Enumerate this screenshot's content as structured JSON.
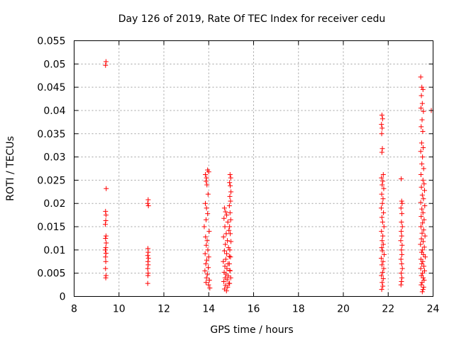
{
  "chart_data": {
    "type": "scatter",
    "title": "Day 126 of 2019, Rate Of TEC Index for receiver cedu",
    "xlabel": "GPS time / hours",
    "ylabel": "ROTI / TECUs",
    "xlim": [
      8,
      24
    ],
    "ylim": [
      0,
      0.055
    ],
    "x_ticks": [
      8,
      10,
      12,
      14,
      16,
      18,
      20,
      22,
      24
    ],
    "x_tick_labels": [
      "8",
      "10",
      "12",
      "14",
      "16",
      "18",
      "20",
      "22",
      "24"
    ],
    "y_ticks": [
      0,
      0.005,
      0.01,
      0.015,
      0.02,
      0.025,
      0.03,
      0.035,
      0.04,
      0.045,
      0.05,
      0.055
    ],
    "y_tick_labels": [
      "0",
      "0.005",
      "0.01",
      "0.015",
      "0.02",
      "0.025",
      "0.03",
      "0.035",
      "0.04",
      "0.045",
      "0.05",
      "0.055"
    ],
    "grid": true,
    "marker": "+",
    "color": "#ff0000",
    "series": [
      {
        "name": "ROTI",
        "points": [
          [
            9.42,
            0.0505
          ],
          [
            9.4,
            0.0497
          ],
          [
            9.43,
            0.0232
          ],
          [
            9.4,
            0.0183
          ],
          [
            9.42,
            0.0175
          ],
          [
            9.41,
            0.0163
          ],
          [
            9.39,
            0.0155
          ],
          [
            9.42,
            0.013
          ],
          [
            9.4,
            0.0125
          ],
          [
            9.43,
            0.0115
          ],
          [
            9.41,
            0.0105
          ],
          [
            9.39,
            0.01
          ],
          [
            9.42,
            0.0093
          ],
          [
            9.4,
            0.0085
          ],
          [
            9.41,
            0.0075
          ],
          [
            9.4,
            0.006
          ],
          [
            9.42,
            0.0045
          ],
          [
            9.41,
            0.004
          ],
          [
            11.3,
            0.0208
          ],
          [
            11.28,
            0.02
          ],
          [
            11.31,
            0.0195
          ],
          [
            11.29,
            0.0103
          ],
          [
            11.3,
            0.0095
          ],
          [
            11.28,
            0.0088
          ],
          [
            11.31,
            0.0082
          ],
          [
            11.29,
            0.0075
          ],
          [
            11.3,
            0.0068
          ],
          [
            11.28,
            0.006
          ],
          [
            11.3,
            0.005
          ],
          [
            11.29,
            0.0045
          ],
          [
            11.28,
            0.0028
          ],
          [
            13.85,
            0.0262
          ],
          [
            13.9,
            0.0255
          ],
          [
            13.95,
            0.0272
          ],
          [
            13.88,
            0.0248
          ],
          [
            14.0,
            0.0268
          ],
          [
            13.92,
            0.024
          ],
          [
            13.97,
            0.022
          ],
          [
            13.85,
            0.02
          ],
          [
            13.9,
            0.019
          ],
          [
            13.95,
            0.0178
          ],
          [
            13.88,
            0.0165
          ],
          [
            13.8,
            0.015
          ],
          [
            14.02,
            0.014
          ],
          [
            13.86,
            0.0128
          ],
          [
            13.93,
            0.012
          ],
          [
            13.89,
            0.011
          ],
          [
            13.96,
            0.01
          ],
          [
            13.84,
            0.0092
          ],
          [
            14.0,
            0.0085
          ],
          [
            13.91,
            0.0078
          ],
          [
            13.87,
            0.007
          ],
          [
            13.98,
            0.0062
          ],
          [
            13.83,
            0.0055
          ],
          [
            13.94,
            0.0048
          ],
          [
            13.9,
            0.004
          ],
          [
            14.03,
            0.0035
          ],
          [
            13.88,
            0.003
          ],
          [
            13.99,
            0.0025
          ],
          [
            14.05,
            0.0018
          ],
          [
            14.7,
            0.019
          ],
          [
            14.75,
            0.0182
          ],
          [
            14.8,
            0.0175
          ],
          [
            14.68,
            0.0168
          ],
          [
            14.85,
            0.016
          ],
          [
            14.72,
            0.015
          ],
          [
            14.9,
            0.0142
          ],
          [
            14.78,
            0.0135
          ],
          [
            14.66,
            0.0128
          ],
          [
            14.83,
            0.012
          ],
          [
            14.74,
            0.0112
          ],
          [
            14.88,
            0.0105
          ],
          [
            14.7,
            0.0098
          ],
          [
            14.8,
            0.0092
          ],
          [
            14.92,
            0.0086
          ],
          [
            14.76,
            0.008
          ],
          [
            14.65,
            0.0075
          ],
          [
            14.86,
            0.007
          ],
          [
            14.72,
            0.0065
          ],
          [
            14.81,
            0.006
          ],
          [
            14.94,
            0.0056
          ],
          [
            14.69,
            0.0052
          ],
          [
            14.77,
            0.0048
          ],
          [
            14.87,
            0.0044
          ],
          [
            14.73,
            0.004
          ],
          [
            14.82,
            0.0036
          ],
          [
            14.67,
            0.0032
          ],
          [
            14.9,
            0.0028
          ],
          [
            14.75,
            0.0024
          ],
          [
            14.84,
            0.002
          ],
          [
            14.7,
            0.0016
          ],
          [
            14.79,
            0.0012
          ],
          [
            14.95,
            0.0262
          ],
          [
            14.98,
            0.0255
          ],
          [
            14.93,
            0.0245
          ],
          [
            14.96,
            0.0238
          ],
          [
            14.99,
            0.0225
          ],
          [
            14.94,
            0.0215
          ],
          [
            14.97,
            0.0205
          ],
          [
            14.92,
            0.0195
          ],
          [
            14.95,
            0.018
          ],
          [
            14.98,
            0.0165
          ],
          [
            14.93,
            0.015
          ],
          [
            14.96,
            0.0135
          ],
          [
            14.99,
            0.0118
          ],
          [
            14.94,
            0.01
          ],
          [
            14.97,
            0.0085
          ],
          [
            14.92,
            0.007
          ],
          [
            14.95,
            0.0055
          ],
          [
            14.98,
            0.004
          ],
          [
            14.93,
            0.0028
          ],
          [
            21.72,
            0.039
          ],
          [
            21.75,
            0.0382
          ],
          [
            21.7,
            0.037
          ],
          [
            21.73,
            0.0362
          ],
          [
            21.71,
            0.035
          ],
          [
            21.74,
            0.0318
          ],
          [
            21.72,
            0.031
          ],
          [
            21.78,
            0.0262
          ],
          [
            21.7,
            0.0255
          ],
          [
            21.76,
            0.0248
          ],
          [
            21.73,
            0.024
          ],
          [
            21.8,
            0.0232
          ],
          [
            21.71,
            0.022
          ],
          [
            21.77,
            0.021
          ],
          [
            21.74,
            0.02
          ],
          [
            21.69,
            0.019
          ],
          [
            21.79,
            0.018
          ],
          [
            21.72,
            0.017
          ],
          [
            21.75,
            0.016
          ],
          [
            21.81,
            0.015
          ],
          [
            21.7,
            0.014
          ],
          [
            21.76,
            0.013
          ],
          [
            21.73,
            0.012
          ],
          [
            21.78,
            0.0112
          ],
          [
            21.71,
            0.0105
          ],
          [
            21.74,
            0.0098
          ],
          [
            21.82,
            0.009
          ],
          [
            21.69,
            0.0082
          ],
          [
            21.77,
            0.0075
          ],
          [
            21.72,
            0.0068
          ],
          [
            21.8,
            0.006
          ],
          [
            21.75,
            0.0052
          ],
          [
            21.7,
            0.0045
          ],
          [
            21.78,
            0.0038
          ],
          [
            21.73,
            0.003
          ],
          [
            21.76,
            0.0022
          ],
          [
            21.71,
            0.0015
          ],
          [
            22.58,
            0.0253
          ],
          [
            22.6,
            0.0205
          ],
          [
            22.62,
            0.02
          ],
          [
            22.57,
            0.019
          ],
          [
            22.61,
            0.0178
          ],
          [
            22.59,
            0.016
          ],
          [
            22.63,
            0.015
          ],
          [
            22.58,
            0.014
          ],
          [
            22.6,
            0.013
          ],
          [
            22.56,
            0.012
          ],
          [
            22.62,
            0.011
          ],
          [
            22.59,
            0.01
          ],
          [
            22.61,
            0.009
          ],
          [
            22.57,
            0.008
          ],
          [
            22.6,
            0.007
          ],
          [
            22.63,
            0.006
          ],
          [
            22.58,
            0.005
          ],
          [
            22.61,
            0.004
          ],
          [
            22.59,
            0.0032
          ],
          [
            22.57,
            0.0025
          ],
          [
            23.45,
            0.0472
          ],
          [
            23.5,
            0.045
          ],
          [
            23.55,
            0.0445
          ],
          [
            23.48,
            0.0432
          ],
          [
            23.52,
            0.0415
          ],
          [
            23.46,
            0.0405
          ],
          [
            23.57,
            0.0398
          ],
          [
            23.92,
            0.04
          ],
          [
            23.51,
            0.038
          ],
          [
            23.47,
            0.0365
          ],
          [
            23.54,
            0.0355
          ],
          [
            23.49,
            0.033
          ],
          [
            23.56,
            0.032
          ],
          [
            23.45,
            0.0312
          ],
          [
            23.53,
            0.03
          ],
          [
            23.5,
            0.0285
          ],
          [
            23.58,
            0.0275
          ],
          [
            23.46,
            0.0262
          ],
          [
            23.55,
            0.025
          ],
          [
            23.6,
            0.0242
          ],
          [
            23.48,
            0.0235
          ],
          [
            23.62,
            0.0228
          ],
          [
            23.52,
            0.0218
          ],
          [
            23.57,
            0.021
          ],
          [
            23.45,
            0.0202
          ],
          [
            23.63,
            0.0195
          ],
          [
            23.5,
            0.0188
          ],
          [
            23.55,
            0.018
          ],
          [
            23.47,
            0.0172
          ],
          [
            23.6,
            0.0165
          ],
          [
            23.53,
            0.0158
          ],
          [
            23.46,
            0.015
          ],
          [
            23.58,
            0.0143
          ],
          [
            23.51,
            0.0136
          ],
          [
            23.64,
            0.013
          ],
          [
            23.48,
            0.0124
          ],
          [
            23.56,
            0.0118
          ],
          [
            23.44,
            0.0112
          ],
          [
            23.61,
            0.0106
          ],
          [
            23.52,
            0.01
          ],
          [
            23.49,
            0.0095
          ],
          [
            23.57,
            0.009
          ],
          [
            23.65,
            0.0085
          ],
          [
            23.46,
            0.008
          ],
          [
            23.54,
            0.0075
          ],
          [
            23.5,
            0.007
          ],
          [
            23.59,
            0.0065
          ],
          [
            23.45,
            0.006
          ],
          [
            23.62,
            0.0055
          ],
          [
            23.53,
            0.005
          ],
          [
            23.48,
            0.0045
          ],
          [
            23.56,
            0.004
          ],
          [
            23.6,
            0.0035
          ],
          [
            23.51,
            0.003
          ],
          [
            23.47,
            0.0025
          ],
          [
            23.58,
            0.002
          ],
          [
            23.55,
            0.0015
          ],
          [
            23.52,
            0.001
          ]
        ]
      }
    ]
  }
}
